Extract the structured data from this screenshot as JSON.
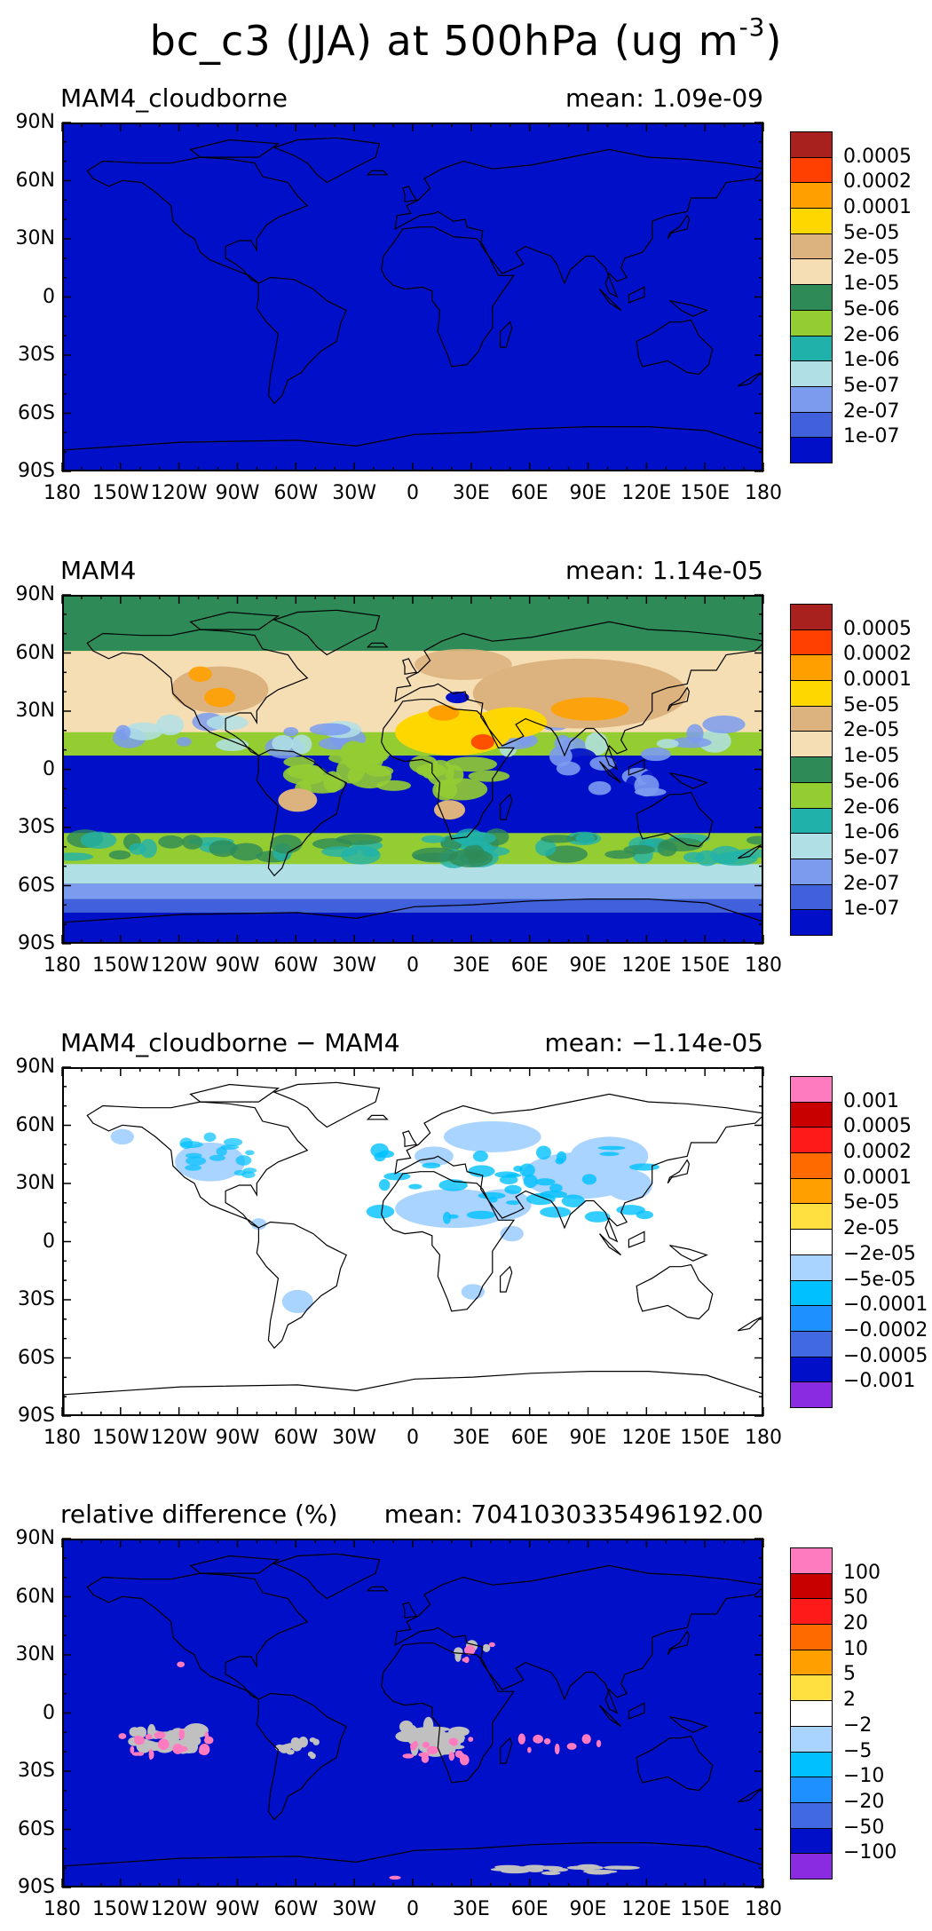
{
  "title": {
    "text": "bc_c3 (JJA) at 500hPa (ug m",
    "superscript": "-3",
    "suffix": ")"
  },
  "axes": {
    "lat_ticks": [
      "90N",
      "60N",
      "30N",
      "0",
      "30S",
      "60S",
      "90S"
    ],
    "lon_ticks": [
      "180",
      "150W",
      "120W",
      "90W",
      "60W",
      "30W",
      "0",
      "30E",
      "60E",
      "90E",
      "120E",
      "150E",
      "180"
    ]
  },
  "panels": [
    {
      "id": "cloudborne",
      "label": "MAM4_cloudborne",
      "mean": "mean: 1.09e-09",
      "background": "#0010c8",
      "colorbar": {
        "colors": [
          "#a8211e",
          "#ff4000",
          "#ffa000",
          "#ffd700",
          "#dcb27e",
          "#f5deb3",
          "#2e8b57",
          "#94cd32",
          "#20b2aa",
          "#b0e0e6",
          "#7b9bef",
          "#4060dc",
          "#0010c8"
        ],
        "labels": [
          "0.0005",
          "0.0002",
          "0.0001",
          "5e-05",
          "2e-05",
          "1e-05",
          "5e-06",
          "2e-06",
          "1e-06",
          "5e-07",
          "2e-07",
          "1e-07"
        ]
      }
    },
    {
      "id": "mam4",
      "label": "MAM4",
      "mean": "mean: 1.14e-05",
      "background": "#94cd32",
      "colorbar": {
        "colors": [
          "#a8211e",
          "#ff4000",
          "#ffa000",
          "#ffd700",
          "#dcb27e",
          "#f5deb3",
          "#2e8b57",
          "#94cd32",
          "#20b2aa",
          "#b0e0e6",
          "#7b9bef",
          "#4060dc",
          "#0010c8"
        ],
        "labels": [
          "0.0005",
          "0.0002",
          "0.0001",
          "5e-05",
          "2e-05",
          "1e-05",
          "5e-06",
          "2e-06",
          "1e-06",
          "5e-07",
          "2e-07",
          "1e-07"
        ]
      }
    },
    {
      "id": "diff",
      "label": "MAM4_cloudborne − MAM4",
      "mean": "mean: −1.14e-05",
      "background": "#ffffff",
      "colorbar": {
        "colors": [
          "#ff7bc0",
          "#c80000",
          "#ff1a1a",
          "#ff6a00",
          "#ffa000",
          "#ffe040",
          "#ffffff",
          "#a8d4ff",
          "#00c0ff",
          "#1e90ff",
          "#4169e1",
          "#0010c8",
          "#8a2be2"
        ],
        "labels": [
          "0.001",
          "0.0005",
          "0.0002",
          "0.0001",
          "5e-05",
          "2e-05",
          "−2e-05",
          "−5e-05",
          "−0.0001",
          "−0.0002",
          "−0.0005",
          "−0.001"
        ]
      }
    },
    {
      "id": "reldiff",
      "label": "relative difference (%)",
      "mean": "mean: 7041030335496192.00",
      "background": "#0010c8",
      "colorbar": {
        "colors": [
          "#ff7bc0",
          "#c80000",
          "#ff1a1a",
          "#ff6a00",
          "#ffa000",
          "#ffe040",
          "#ffffff",
          "#a8d4ff",
          "#00c0ff",
          "#1e90ff",
          "#4169e1",
          "#0010c8",
          "#8a2be2"
        ],
        "labels": [
          "100",
          "50",
          "20",
          "10",
          "5",
          "2",
          "−2",
          "−5",
          "−10",
          "−20",
          "−50",
          "−100"
        ]
      }
    }
  ]
}
